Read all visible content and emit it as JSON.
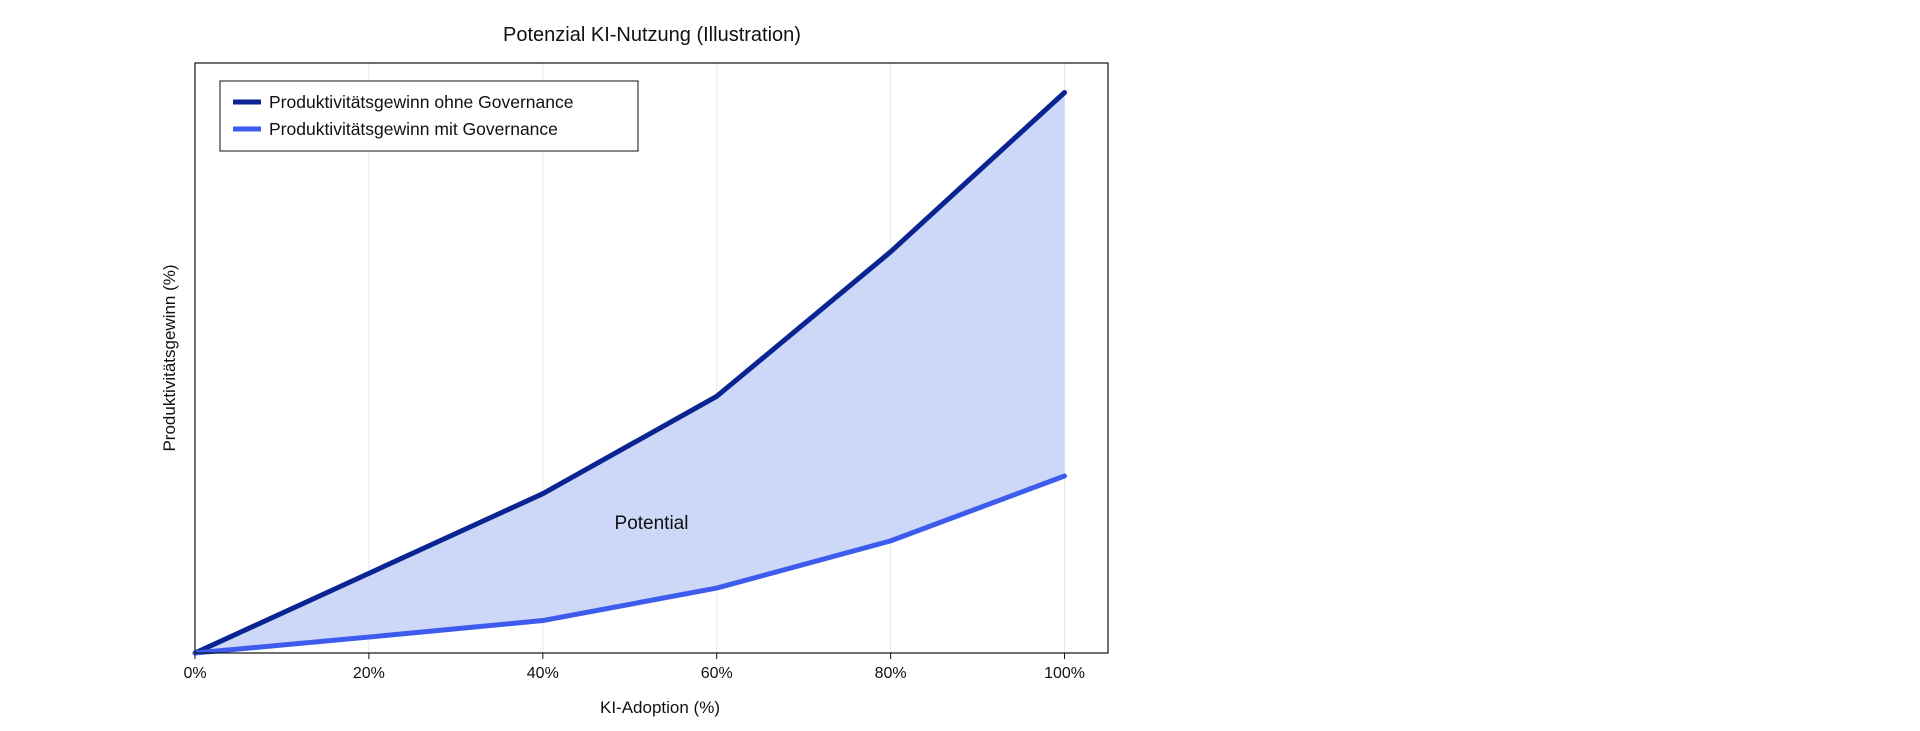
{
  "chart_data": {
    "type": "line",
    "title": "Potenzial KI-Nutzung (Illustration)",
    "xlabel": "KI-Adoption (%)",
    "ylabel": "Produktivitätsgewinn (%)",
    "x": [
      0,
      20,
      40,
      60,
      80,
      100
    ],
    "x_tick_labels": [
      "0%",
      "20%",
      "40%",
      "60%",
      "80%",
      "100%"
    ],
    "xlim": [
      0,
      105
    ],
    "ylim": [
      0,
      100
    ],
    "y_ticks_visible": false,
    "series": [
      {
        "name": "Produktivitätsgewinn ohne Governance",
        "values": [
          0,
          13.5,
          27,
          43.5,
          68,
          95
        ],
        "color": "#0a2592"
      },
      {
        "name": "Produktivitätsgewinn mit Governance",
        "values": [
          0,
          2.7,
          5.5,
          11,
          19,
          30
        ],
        "color": "#3d5ced"
      }
    ],
    "fill_between": {
      "color": "#cdd7f8"
    },
    "annotation": {
      "text": "Potential",
      "x": 52.5,
      "y": 22
    },
    "grid": {
      "x": true,
      "y": false
    },
    "legend_position": "top-left"
  }
}
